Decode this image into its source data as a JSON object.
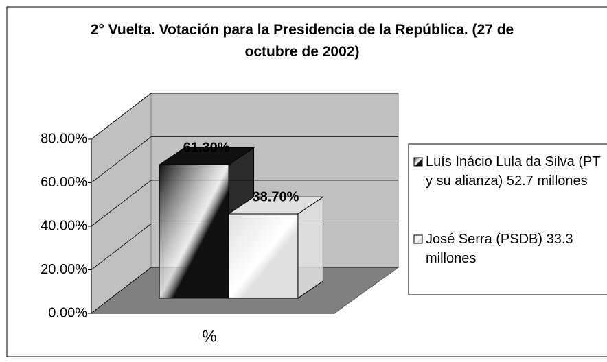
{
  "chart_data": {
    "type": "bar",
    "title": "2° Vuelta. Votación para la Presidencia de la República. (27 de octubre de 2002)",
    "categories": [
      "%"
    ],
    "series": [
      {
        "name": "Luís Inácio Lula da Silva (PT y su alianza) 52.7 millones",
        "color": "#111111",
        "values": [
          61.3
        ],
        "value_labels": [
          "61.30%"
        ]
      },
      {
        "name": "José Serra (PSDB) 33.3 millones",
        "color": "#e0e0e0",
        "values": [
          38.7
        ],
        "value_labels": [
          "38.70%"
        ]
      }
    ],
    "ylim": [
      0,
      80
    ],
    "yticks": [
      {
        "value": 0,
        "label": "0.00%"
      },
      {
        "value": 20,
        "label": "20.00%"
      },
      {
        "value": 40,
        "label": "40.00%"
      },
      {
        "value": 60,
        "label": "60.00%"
      },
      {
        "value": 80,
        "label": "80.00%"
      }
    ],
    "grid": true,
    "legend": "right"
  }
}
